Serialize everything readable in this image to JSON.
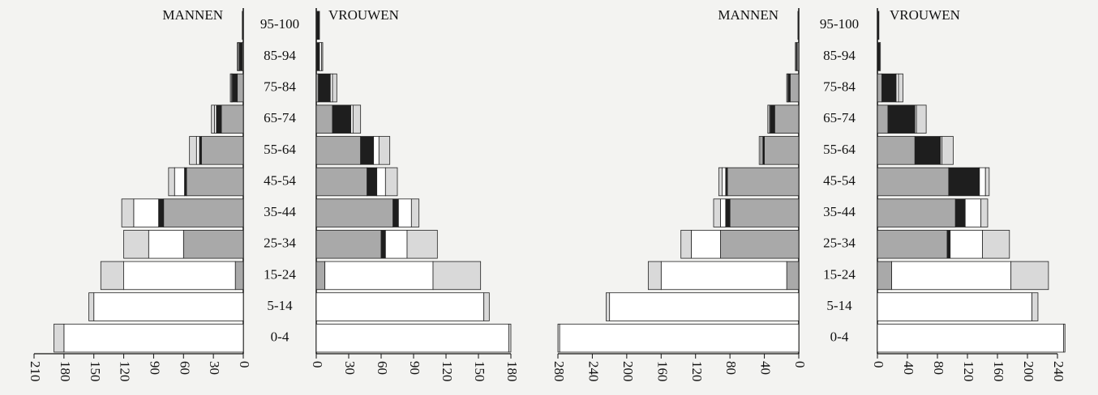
{
  "chart_data": [
    {
      "type": "pyramid",
      "categories": [
        "0-4",
        "5-14",
        "15-24",
        "25-34",
        "35-44",
        "45-54",
        "55-64",
        "65-74",
        "75-84",
        "85-94",
        "95-100"
      ],
      "left": {
        "title": "MANNEN",
        "xlim": [
          0,
          210
        ],
        "xticks": [
          0,
          30,
          60,
          90,
          120,
          150,
          180,
          210
        ],
        "series": [
          {
            "color": "#a9a9a9",
            "values": [
              0,
              0,
              8,
              60,
              80,
              57,
              42,
              22,
              6,
              1,
              0
            ]
          },
          {
            "color": "#1e1e1e",
            "values": [
              0,
              0,
              0,
              0,
              5,
              2,
              2,
              5,
              5,
              3,
              1
            ]
          },
          {
            "color": "#ffffff",
            "values": [
              180,
              150,
              112,
              35,
              25,
              10,
              3,
              2,
              1,
              1,
              0
            ]
          },
          {
            "color": "#d9d9d9",
            "values": [
              10,
              5,
              23,
              25,
              12,
              6,
              7,
              3,
              1,
              1,
              0
            ]
          }
        ]
      },
      "right": {
        "title": "VROUWEN",
        "xlim": [
          0,
          180
        ],
        "xticks": [
          0,
          30,
          60,
          90,
          120,
          150,
          180
        ],
        "series": [
          {
            "color": "#a9a9a9",
            "values": [
              0,
              0,
              8,
              60,
              71,
              47,
              41,
              15,
              2,
              0,
              0
            ]
          },
          {
            "color": "#1e1e1e",
            "values": [
              0,
              0,
              0,
              4,
              5,
              9,
              12,
              17,
              11,
              3,
              3
            ]
          },
          {
            "color": "#ffffff",
            "values": [
              178,
              155,
              100,
              20,
              12,
              8,
              5,
              2,
              2,
              2,
              0
            ]
          },
          {
            "color": "#d9d9d9",
            "values": [
              2,
              5,
              44,
              28,
              7,
              11,
              10,
              7,
              4,
              1,
              0
            ]
          }
        ]
      }
    },
    {
      "type": "pyramid",
      "categories": [
        "0-4",
        "5-14",
        "15-24",
        "25-34",
        "35-44",
        "45-54",
        "55-64",
        "65-74",
        "75-84",
        "85-94",
        "95-100"
      ],
      "left": {
        "title": "MANNEN",
        "xlim": [
          0,
          280
        ],
        "xticks": [
          0,
          40,
          80,
          120,
          160,
          200,
          240,
          280
        ],
        "series": [
          {
            "color": "#a9a9a9",
            "values": [
              0,
              0,
              14,
              91,
              80,
              83,
              40,
              28,
              10,
              2,
              0
            ]
          },
          {
            "color": "#1e1e1e",
            "values": [
              0,
              0,
              0,
              0,
              5,
              2,
              2,
              5,
              2,
              1,
              1
            ]
          },
          {
            "color": "#ffffff",
            "values": [
              278,
              220,
              146,
              34,
              6,
              4,
              2,
              1,
              1,
              0,
              0
            ]
          },
          {
            "color": "#d9d9d9",
            "values": [
              2,
              4,
              15,
              12,
              8,
              4,
              2,
              2,
              1,
              1,
              0
            ]
          }
        ]
      },
      "right": {
        "title": "VROUWEN",
        "xlim": [
          0,
          240
        ],
        "xticks": [
          0,
          40,
          80,
          120,
          160,
          200,
          240
        ],
        "series": [
          {
            "color": "#a9a9a9",
            "values": [
              0,
              0,
              19,
              93,
              104,
              95,
              50,
              14,
              6,
              0,
              0
            ]
          },
          {
            "color": "#1e1e1e",
            "values": [
              0,
              0,
              0,
              4,
              13,
              41,
              34,
              36,
              19,
              3,
              2
            ]
          },
          {
            "color": "#ffffff",
            "values": [
              248,
              206,
              159,
              43,
              21,
              8,
              2,
              2,
              3,
              0,
              0
            ]
          },
          {
            "color": "#d9d9d9",
            "values": [
              2,
              8,
              50,
              36,
              9,
              5,
              15,
              13,
              6,
              1,
              0
            ]
          }
        ]
      }
    }
  ]
}
